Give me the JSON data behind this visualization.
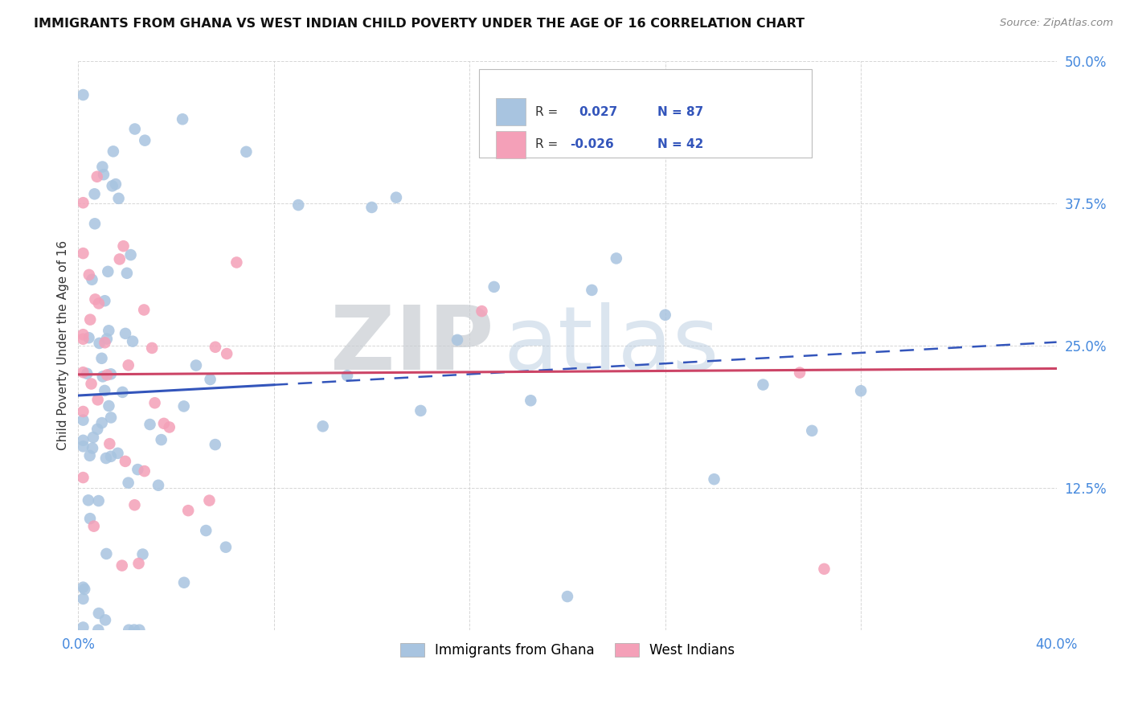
{
  "title": "IMMIGRANTS FROM GHANA VS WEST INDIAN CHILD POVERTY UNDER THE AGE OF 16 CORRELATION CHART",
  "source": "Source: ZipAtlas.com",
  "ylabel": "Child Poverty Under the Age of 16",
  "xlim": [
    0.0,
    0.4
  ],
  "ylim": [
    0.0,
    0.5
  ],
  "xtick_vals": [
    0.0,
    0.08,
    0.16,
    0.24,
    0.32,
    0.4
  ],
  "xticklabels": [
    "0.0%",
    "",
    "",
    "",
    "",
    "40.0%"
  ],
  "ytick_vals": [
    0.0,
    0.125,
    0.25,
    0.375,
    0.5
  ],
  "yticklabels": [
    "",
    "12.5%",
    "25.0%",
    "37.5%",
    "50.0%"
  ],
  "watermark_zip": "ZIP",
  "watermark_atlas": "atlas",
  "ghana_R": 0.027,
  "ghana_N": 87,
  "westindian_R": -0.026,
  "westindian_N": 42,
  "ghana_color": "#a8c4e0",
  "westindian_color": "#f4a0b8",
  "ghana_line_color": "#3355bb",
  "westindian_line_color": "#cc4466",
  "legend_ghana_label": "Immigrants from Ghana",
  "legend_westindian_label": "West Indians",
  "background_color": "#ffffff",
  "grid_color": "#cccccc",
  "tick_color": "#4488dd",
  "title_color": "#111111",
  "source_color": "#888888",
  "ylabel_color": "#333333",
  "legend_text_color": "#333333",
  "legend_val_color": "#3355bb"
}
